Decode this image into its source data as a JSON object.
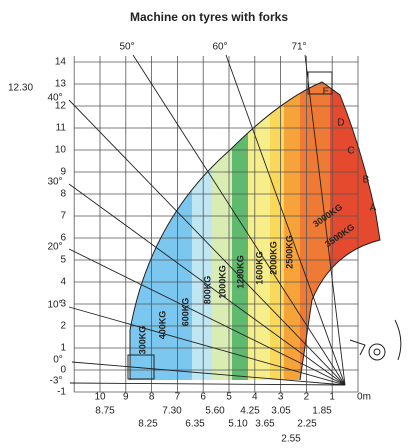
{
  "title": "Machine on tyres with forks",
  "y_axis_labels": [
    "14",
    "13",
    "12",
    "11",
    "10",
    "9",
    "8",
    "7",
    "6",
    "5",
    "4",
    "3",
    "2",
    "1",
    "0",
    "-1"
  ],
  "x_axis_labels": [
    "10",
    "9",
    "8",
    "7",
    "6",
    "5",
    "4",
    "3",
    "2",
    "1",
    "0m"
  ],
  "x_sub_labels": [
    "8.75",
    "8.25",
    "7.30",
    "6.35",
    "5.60",
    "5.10",
    "4.25",
    "3.65",
    "3.05",
    "2.55",
    "2.25",
    "1.85"
  ],
  "height_label": "12.30",
  "angle_labels": [
    "50°",
    "60°",
    "71°",
    "40°",
    "30°",
    "20°",
    "10°",
    "0°",
    "-3°"
  ],
  "boom_labels": [
    "E",
    "D",
    "C",
    "B",
    "A"
  ],
  "load_labels": [
    "300KG",
    "400KG",
    "600KG",
    "800KG",
    "1000KG",
    "1200KG",
    "1600KG",
    "2000KG",
    "2500KG",
    "3000KG",
    "3500KG"
  ]
}
